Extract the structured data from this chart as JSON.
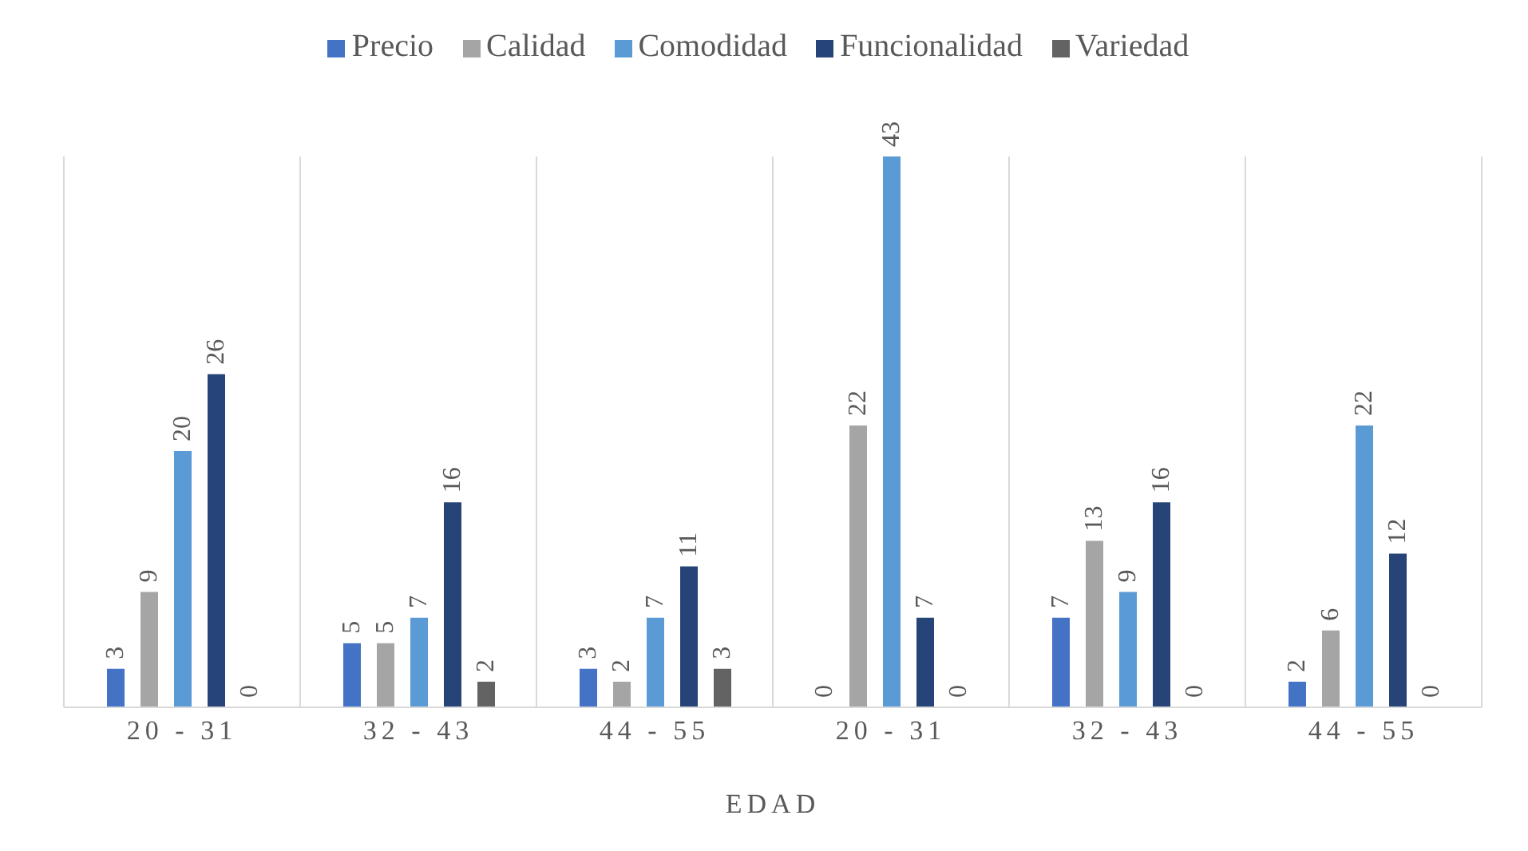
{
  "chart_data": {
    "type": "bar",
    "xlabel": "EDAD",
    "categories": [
      "20 - 31",
      "32 - 43",
      "44 - 55",
      "20 - 31",
      "32 - 43",
      "44 - 55"
    ],
    "series": [
      {
        "name": "Precio",
        "color": "#4472c4",
        "values": [
          3,
          5,
          3,
          0,
          7,
          2
        ]
      },
      {
        "name": "Calidad",
        "color": "#a5a5a5",
        "values": [
          9,
          5,
          2,
          22,
          13,
          6
        ]
      },
      {
        "name": "Comodidad",
        "color": "#5b9bd5",
        "values": [
          20,
          7,
          7,
          43,
          9,
          22
        ]
      },
      {
        "name": "Funcionalidad",
        "color": "#264478",
        "values": [
          26,
          16,
          11,
          7,
          16,
          12
        ]
      },
      {
        "name": "Variedad",
        "color": "#636363",
        "values": [
          0,
          2,
          3,
          0,
          0,
          0
        ]
      }
    ],
    "data_labels": true,
    "grid": "x",
    "legend": "top"
  }
}
